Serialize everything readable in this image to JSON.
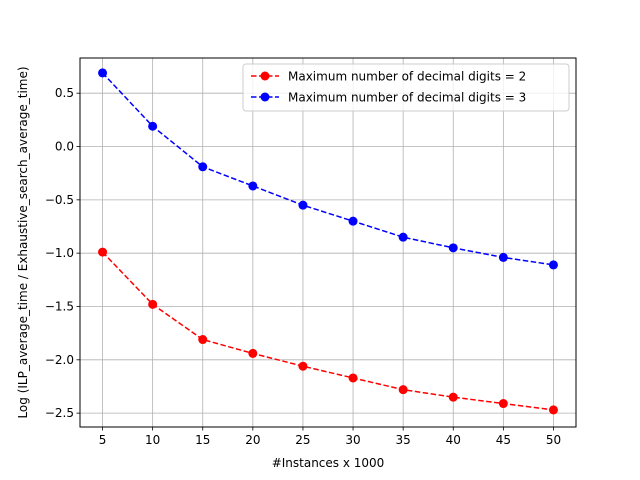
{
  "chart_data": {
    "type": "line",
    "title": "",
    "xlabel": "#Instances x 1000",
    "ylabel": "Log (ILP_average_time / Exhaustive_search_average_time)",
    "x": [
      5,
      10,
      15,
      20,
      25,
      30,
      35,
      40,
      45,
      50
    ],
    "x_ticks": [
      "5",
      "10",
      "15",
      "20",
      "25",
      "30",
      "35",
      "40",
      "45",
      "50"
    ],
    "y_ticks": [
      {
        "value": 0.5,
        "label": "0.5"
      },
      {
        "value": 0.0,
        "label": "0.0"
      },
      {
        "value": -0.5,
        "label": "−0.5"
      },
      {
        "value": -1.0,
        "label": "−1.0"
      },
      {
        "value": -1.5,
        "label": "−1.5"
      },
      {
        "value": -2.0,
        "label": "−2.0"
      },
      {
        "value": -2.5,
        "label": "−2.5"
      }
    ],
    "xlim": [
      2.75,
      52.25
    ],
    "ylim": [
      -2.63,
      0.83
    ],
    "grid": true,
    "legend_position": "top-right",
    "series": [
      {
        "name": "Maximum number of decimal digits = 2",
        "color": "#ff0000",
        "line_style": "dashed",
        "marker": "circle",
        "values": [
          -0.99,
          -1.48,
          -1.81,
          -1.94,
          -2.06,
          -2.17,
          -2.28,
          -2.35,
          -2.41,
          -2.47
        ]
      },
      {
        "name": "Maximum number of decimal digits = 3",
        "color": "#0000ff",
        "line_style": "dashed",
        "marker": "circle",
        "values": [
          0.69,
          0.19,
          -0.19,
          -0.37,
          -0.55,
          -0.7,
          -0.85,
          -0.95,
          -1.04,
          -1.11
        ]
      }
    ]
  }
}
